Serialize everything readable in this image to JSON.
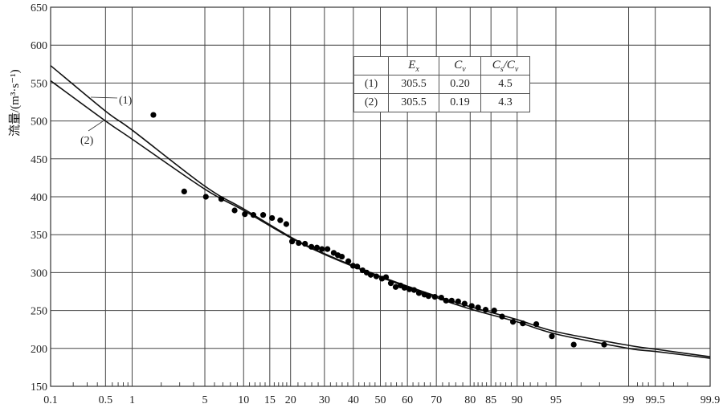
{
  "chart_data": {
    "type": "scatter",
    "title": "",
    "xlabel": "",
    "ylabel": "流量/(m³·s⁻¹)",
    "x_scale": "normal-probability",
    "xlim": [
      0.1,
      99.9
    ],
    "ylim": [
      150,
      650
    ],
    "grid": true,
    "x_ticks": [
      0.1,
      0.5,
      1,
      5,
      10,
      15,
      20,
      30,
      40,
      50,
      60,
      70,
      80,
      85,
      90,
      95,
      99,
      99.5,
      99.9
    ],
    "x_tick_labels": [
      "0.1",
      "0.5",
      "1",
      "5",
      "10",
      "15",
      "20",
      "30",
      "40",
      "50",
      "60",
      "70",
      "80",
      "85",
      "90",
      "95",
      "99",
      "99.5",
      "99.9"
    ],
    "y_ticks": [
      150,
      200,
      250,
      300,
      350,
      400,
      450,
      500,
      550,
      600,
      650
    ],
    "y_tick_labels": [
      "150",
      "200",
      "250",
      "300",
      "350",
      "400",
      "450",
      "500",
      "550",
      "600",
      "650"
    ],
    "observed_points": [
      [
        1.67,
        508
      ],
      [
        3.3,
        407
      ],
      [
        5.1,
        400
      ],
      [
        6.8,
        397
      ],
      [
        8.6,
        382
      ],
      [
        10.2,
        377
      ],
      [
        11.7,
        376
      ],
      [
        13.6,
        376
      ],
      [
        15.5,
        372
      ],
      [
        17.4,
        369
      ],
      [
        18.9,
        364
      ],
      [
        20.4,
        341
      ],
      [
        22.2,
        339
      ],
      [
        24.0,
        338
      ],
      [
        25.9,
        334
      ],
      [
        27.6,
        333
      ],
      [
        29.2,
        331
      ],
      [
        31.0,
        331
      ],
      [
        33.1,
        326
      ],
      [
        34.5,
        323
      ],
      [
        35.9,
        321
      ],
      [
        38.2,
        315
      ],
      [
        39.9,
        309
      ],
      [
        41.4,
        308
      ],
      [
        43.4,
        303
      ],
      [
        44.9,
        300
      ],
      [
        46.4,
        297
      ],
      [
        48.5,
        295
      ],
      [
        50.6,
        292
      ],
      [
        52.1,
        294
      ],
      [
        53.9,
        286
      ],
      [
        55.7,
        281
      ],
      [
        57.5,
        283
      ],
      [
        58.9,
        280
      ],
      [
        60.7,
        278
      ],
      [
        62.4,
        277
      ],
      [
        64.1,
        273
      ],
      [
        66.0,
        271
      ],
      [
        67.4,
        269
      ],
      [
        69.5,
        268
      ],
      [
        71.6,
        267
      ],
      [
        73.1,
        263
      ],
      [
        74.8,
        263
      ],
      [
        76.7,
        262
      ],
      [
        78.5,
        259
      ],
      [
        80.4,
        256
      ],
      [
        82.0,
        254
      ],
      [
        83.8,
        251
      ],
      [
        85.7,
        250
      ],
      [
        87.3,
        242
      ],
      [
        89.3,
        235
      ],
      [
        90.9,
        233
      ],
      [
        92.8,
        232
      ],
      [
        94.6,
        216
      ],
      [
        96.5,
        205
      ],
      [
        98.2,
        205
      ]
    ],
    "series": [
      {
        "name": "(1)",
        "label": "(1)",
        "points": [
          [
            0.1,
            573
          ],
          [
            0.5,
            513
          ],
          [
            1,
            488
          ],
          [
            5,
            414
          ],
          [
            10,
            384
          ],
          [
            20,
            347
          ],
          [
            30,
            325
          ],
          [
            50,
            295
          ],
          [
            70,
            269
          ],
          [
            80,
            255
          ],
          [
            90,
            238
          ],
          [
            95,
            222
          ],
          [
            99,
            204
          ],
          [
            99.5,
            199
          ],
          [
            99.9,
            189
          ]
        ]
      },
      {
        "name": "(2)",
        "label": "(2)",
        "points": [
          [
            0.1,
            553
          ],
          [
            0.5,
            500
          ],
          [
            1,
            476
          ],
          [
            5,
            410
          ],
          [
            10,
            382
          ],
          [
            20,
            346
          ],
          [
            30,
            324
          ],
          [
            50,
            294
          ],
          [
            70,
            267
          ],
          [
            80,
            252
          ],
          [
            90,
            235
          ],
          [
            95,
            219
          ],
          [
            99,
            200
          ],
          [
            99.5,
            196
          ],
          [
            99.9,
            187
          ]
        ]
      }
    ],
    "params_table": {
      "headers": [
        "",
        "Ex",
        "Cv",
        "Cs/Cv"
      ],
      "rows": [
        [
          "(1)",
          "305.5",
          "0.20",
          "4.5"
        ],
        [
          "(2)",
          "305.5",
          "0.19",
          "4.3"
        ]
      ]
    }
  }
}
